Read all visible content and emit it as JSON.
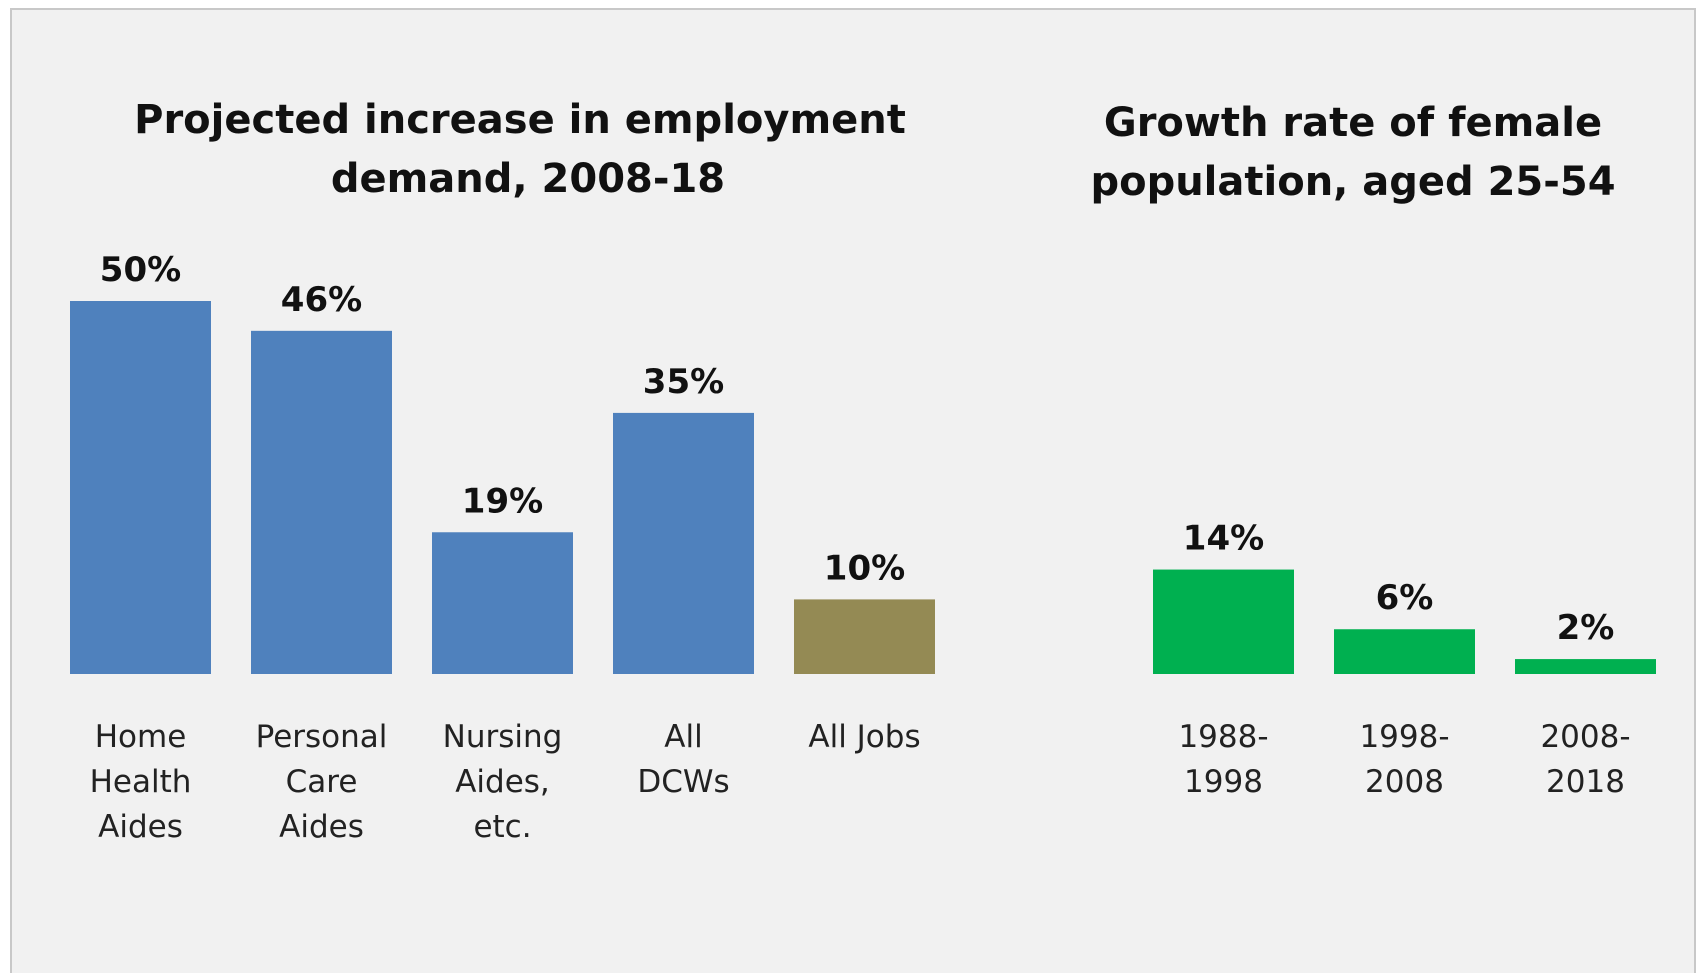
{
  "chart_data": [
    {
      "type": "bar",
      "title_lines": [
        "Projected increase in employment",
        "demand, 2008-18"
      ],
      "categories": [
        [
          "Home",
          "Health",
          "Aides"
        ],
        [
          "Personal",
          "Care",
          "Aides"
        ],
        [
          "Nursing",
          "Aides,",
          "etc."
        ],
        [
          "All",
          "DCWs"
        ],
        [
          "All Jobs"
        ]
      ],
      "values": [
        50,
        46,
        19,
        35,
        10
      ],
      "value_labels": [
        "50%",
        "46%",
        "19%",
        "35%",
        "10%"
      ],
      "colors": [
        "#4f81bd",
        "#4f81bd",
        "#4f81bd",
        "#4f81bd",
        "#948a54"
      ],
      "ylim": [
        0,
        50
      ],
      "grid": false,
      "legend": "none"
    },
    {
      "type": "bar",
      "title_lines": [
        "Growth rate of female",
        "population, aged 25-54"
      ],
      "categories": [
        [
          "1988-",
          "1998"
        ],
        [
          "1998-",
          "2008"
        ],
        [
          "2008-",
          "2018"
        ]
      ],
      "values": [
        14,
        6,
        2
      ],
      "value_labels": [
        "14%",
        "6%",
        "2%"
      ],
      "colors": [
        "#00b050",
        "#00b050",
        "#00b050"
      ],
      "ylim": [
        0,
        50
      ],
      "grid": false,
      "legend": "none"
    }
  ]
}
